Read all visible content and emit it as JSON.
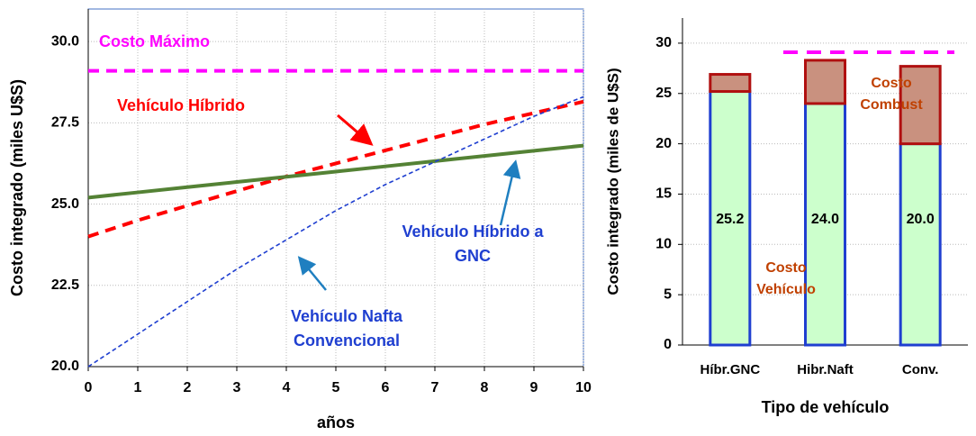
{
  "chart_data": [
    {
      "type": "line",
      "x_label": "años",
      "y_label": "Costo integrado (miles U$S)",
      "x": [
        0,
        1,
        2,
        3,
        4,
        5,
        6,
        7,
        8,
        9,
        10
      ],
      "xlim": [
        0,
        10
      ],
      "xticks": [
        0,
        1,
        2,
        3,
        4,
        5,
        6,
        7,
        8,
        9,
        10
      ],
      "ylim": [
        20,
        31
      ],
      "yticks": [
        {
          "value": 20,
          "label": "20.0"
        },
        22.5,
        {
          "value": 25,
          "label": "25.0"
        },
        27.5,
        {
          "value": 30,
          "label": "30.0"
        }
      ],
      "grid": true,
      "series": [
        {
          "name": "Costo Máximo",
          "color": "#ff00ff",
          "line_style": "dashed",
          "line_width": 4,
          "values": [
            29.1,
            29.1,
            29.1,
            29.1,
            29.1,
            29.1,
            29.1,
            29.1,
            29.1,
            29.1,
            29.1
          ]
        },
        {
          "name": "Vehículo Híbrido",
          "color": "#ff0000",
          "line_style": "dashed",
          "line_width": 4,
          "values": [
            24.0,
            24.5,
            24.95,
            25.4,
            25.85,
            26.25,
            26.65,
            27.05,
            27.45,
            27.8,
            28.15
          ]
        },
        {
          "name": "Vehículo Híbrido a\nGNC",
          "color": "#548235",
          "line_style": "solid",
          "line_width": 4,
          "values": [
            25.2,
            25.36,
            25.52,
            25.68,
            25.84,
            26.0,
            26.16,
            26.32,
            26.48,
            26.64,
            26.8
          ]
        },
        {
          "name": "Vehículo  Nafta\nConvencional",
          "color": "#1f3fd0",
          "line_style": "dashed",
          "line_width": 1.6,
          "values": [
            20.0,
            21.0,
            22.0,
            23.0,
            23.9,
            24.8,
            25.6,
            26.3,
            27.0,
            27.7,
            28.3
          ]
        }
      ]
    },
    {
      "type": "stacked_bar",
      "x_label": "Tipo de vehículo",
      "y_label": "Costo integrado (miles de U$S)",
      "categories": [
        "Híbr.GNC",
        "Hibr.Naft",
        "Conv."
      ],
      "ylim": [
        0,
        32.5
      ],
      "yticks": [
        0,
        5,
        10,
        15,
        20,
        25,
        30
      ],
      "max_line": {
        "value": 29.1,
        "color": "#ff00ff"
      },
      "series": [
        {
          "name": "Costo\nVehículo",
          "color": "#ccffcc",
          "border": "#1f3fd0",
          "values": [
            25.2,
            24.0,
            20.0
          ],
          "value_labels": [
            "25.2",
            "24.0",
            "20.0"
          ]
        },
        {
          "name": "Costo\nCombust",
          "color": "#c9917f",
          "border": "#b01010",
          "values": [
            1.7,
            4.3,
            7.7
          ]
        }
      ]
    }
  ]
}
